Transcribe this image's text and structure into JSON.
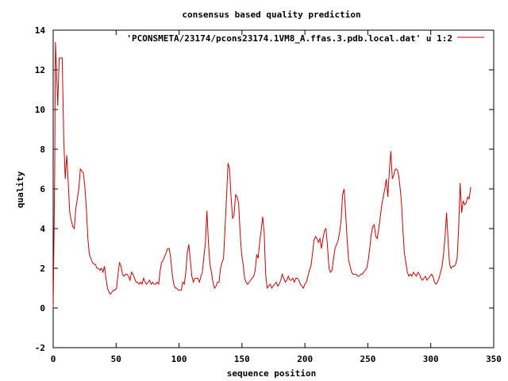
{
  "chart_data": {
    "type": "line",
    "title": "consensus based quality prediction",
    "xlabel": "sequence position",
    "ylabel": "quality",
    "xlim": [
      0,
      350
    ],
    "ylim": [
      -2,
      14
    ],
    "xticks": [
      0,
      50,
      100,
      150,
      200,
      250,
      300,
      350
    ],
    "yticks": [
      -2,
      0,
      2,
      4,
      6,
      8,
      10,
      12,
      14
    ],
    "grid": false,
    "legend_position": "top-right",
    "series": [
      {
        "name": "'PCONSMETA/23174/pcons23174.1VM8_A.ffas.3.pdb.local.dat' u 1:2",
        "color": "#cc0000",
        "points": [
          [
            0,
            0
          ],
          [
            1,
            6.6
          ],
          [
            1.5,
            13.4
          ],
          [
            2,
            12.4
          ],
          [
            3,
            10.2
          ],
          [
            4,
            12.6
          ],
          [
            5,
            12.6
          ],
          [
            6,
            12.6
          ],
          [
            7,
            8.5
          ],
          [
            8,
            6.5
          ],
          [
            9,
            7.7
          ],
          [
            10,
            6.3
          ],
          [
            11,
            4.8
          ],
          [
            12,
            4.4
          ],
          [
            13,
            4.1
          ],
          [
            14,
            4.0
          ],
          [
            15,
            5.0
          ],
          [
            16,
            5.5
          ],
          [
            17,
            6.0
          ],
          [
            18,
            7.0
          ],
          [
            19,
            6.9
          ],
          [
            20,
            6.8
          ],
          [
            21,
            6.1
          ],
          [
            22,
            5.0
          ],
          [
            23,
            3.5
          ],
          [
            24,
            2.7
          ],
          [
            25,
            2.5
          ],
          [
            26,
            2.3
          ],
          [
            27,
            2.2
          ],
          [
            28,
            2.2
          ],
          [
            29,
            2.0
          ],
          [
            30,
            2.0
          ],
          [
            31,
            1.9
          ],
          [
            32,
            2.0
          ],
          [
            33,
            1.8
          ],
          [
            34,
            2.1
          ],
          [
            35,
            1.5
          ],
          [
            36,
            1.0
          ],
          [
            37,
            0.8
          ],
          [
            38,
            0.7
          ],
          [
            39,
            0.8
          ],
          [
            40,
            0.9
          ],
          [
            41,
            0.9
          ],
          [
            42,
            1.0
          ],
          [
            43,
            1.7
          ],
          [
            44,
            2.3
          ],
          [
            45,
            2.1
          ],
          [
            46,
            1.7
          ],
          [
            47,
            1.6
          ],
          [
            48,
            1.7
          ],
          [
            49,
            1.7
          ],
          [
            50,
            1.6
          ],
          [
            51,
            1.4
          ],
          [
            52,
            1.8
          ],
          [
            53,
            1.7
          ],
          [
            54,
            1.5
          ],
          [
            55,
            1.3
          ],
          [
            56,
            1.3
          ],
          [
            57,
            1.2
          ],
          [
            58,
            1.3
          ],
          [
            59,
            1.2
          ],
          [
            60,
            1.5
          ],
          [
            61,
            1.3
          ],
          [
            62,
            1.2
          ],
          [
            63,
            1.3
          ],
          [
            64,
            1.4
          ],
          [
            65,
            1.2
          ],
          [
            66,
            1.3
          ],
          [
            67,
            1.2
          ],
          [
            68,
            1.2
          ],
          [
            69,
            1.3
          ],
          [
            70,
            1.2
          ],
          [
            71,
            1.9
          ],
          [
            72,
            2.3
          ],
          [
            73,
            2.4
          ],
          [
            74,
            2.6
          ],
          [
            75,
            2.8
          ],
          [
            76,
            3.0
          ],
          [
            77,
            3.0
          ],
          [
            78,
            2.5
          ],
          [
            79,
            1.7
          ],
          [
            80,
            1.2
          ],
          [
            81,
            1.0
          ],
          [
            82,
            1.0
          ],
          [
            83,
            0.9
          ],
          [
            84,
            0.9
          ],
          [
            85,
            0.9
          ],
          [
            86,
            1.3
          ],
          [
            87,
            1.2
          ],
          [
            88,
            1.8
          ],
          [
            89,
            2.8
          ],
          [
            90,
            3.2
          ],
          [
            91,
            2.4
          ],
          [
            92,
            1.6
          ],
          [
            93,
            1.3
          ],
          [
            94,
            1.5
          ],
          [
            95,
            1.5
          ],
          [
            96,
            1.5
          ],
          [
            97,
            1.3
          ],
          [
            98,
            1.6
          ],
          [
            99,
            1.8
          ],
          [
            100,
            2.6
          ],
          [
            101,
            3.3
          ],
          [
            102,
            4.9
          ],
          [
            103,
            3.3
          ],
          [
            104,
            2.2
          ],
          [
            105,
            1.8
          ],
          [
            106,
            1.3
          ],
          [
            107,
            1.0
          ],
          [
            108,
            1.1
          ],
          [
            109,
            1.3
          ],
          [
            110,
            1.3
          ],
          [
            111,
            2.0
          ],
          [
            112,
            2.3
          ],
          [
            113,
            2.5
          ],
          [
            114,
            4.0
          ],
          [
            115,
            5.6
          ],
          [
            116,
            7.3
          ],
          [
            117,
            7.0
          ],
          [
            118,
            5.6
          ],
          [
            119,
            4.5
          ],
          [
            120,
            4.7
          ],
          [
            121,
            5.7
          ],
          [
            122,
            5.6
          ],
          [
            123,
            5.3
          ],
          [
            124,
            3.8
          ],
          [
            125,
            2.7
          ],
          [
            126,
            2.2
          ],
          [
            127,
            1.5
          ],
          [
            128,
            1.3
          ],
          [
            129,
            1.2
          ],
          [
            130,
            1.3
          ],
          [
            131,
            1.4
          ],
          [
            132,
            1.5
          ],
          [
            133,
            1.6
          ],
          [
            134,
            1.9
          ],
          [
            135,
            2.7
          ],
          [
            136,
            2.5
          ],
          [
            137,
            3.3
          ],
          [
            138,
            3.9
          ],
          [
            139,
            4.6
          ],
          [
            140,
            3.8
          ],
          [
            141,
            1.7
          ],
          [
            142,
            1.0
          ],
          [
            143,
            1.1
          ],
          [
            144,
            1.2
          ],
          [
            145,
            1.0
          ],
          [
            146,
            1.1
          ],
          [
            147,
            1.2
          ],
          [
            148,
            1.3
          ],
          [
            149,
            1.1
          ],
          [
            150,
            1.2
          ],
          [
            151,
            1.4
          ],
          [
            152,
            1.7
          ],
          [
            153,
            1.5
          ],
          [
            154,
            1.3
          ],
          [
            155,
            1.4
          ],
          [
            156,
            1.6
          ],
          [
            157,
            1.4
          ],
          [
            158,
            1.4
          ],
          [
            159,
            1.5
          ],
          [
            160,
            1.3
          ],
          [
            161,
            1.5
          ],
          [
            162,
            1.5
          ],
          [
            163,
            1.4
          ],
          [
            164,
            1.2
          ],
          [
            165,
            1.1
          ],
          [
            166,
            1.0
          ],
          [
            167,
            1.2
          ],
          [
            168,
            1.3
          ],
          [
            169,
            1.6
          ],
          [
            170,
            1.9
          ],
          [
            171,
            2.1
          ],
          [
            172,
            2.7
          ],
          [
            173,
            3.4
          ],
          [
            174,
            3.6
          ],
          [
            175,
            3.5
          ],
          [
            176,
            3.3
          ],
          [
            177,
            3.5
          ],
          [
            178,
            3.0
          ],
          [
            179,
            3.5
          ],
          [
            180,
            3.9
          ],
          [
            181,
            4.0
          ],
          [
            182,
            3.1
          ],
          [
            183,
            2.0
          ],
          [
            184,
            1.8
          ],
          [
            185,
            1.9
          ],
          [
            186,
            2.5
          ],
          [
            187,
            3.0
          ],
          [
            188,
            3.2
          ],
          [
            189,
            3.4
          ],
          [
            190,
            3.8
          ],
          [
            191,
            4.4
          ],
          [
            192,
            5.7
          ],
          [
            193,
            6.0
          ],
          [
            194,
            4.8
          ],
          [
            195,
            3.5
          ],
          [
            196,
            2.4
          ],
          [
            197,
            2.1
          ],
          [
            198,
            1.8
          ],
          [
            199,
            1.7
          ],
          [
            200,
            1.7
          ],
          [
            201,
            1.7
          ],
          [
            202,
            1.6
          ],
          [
            203,
            1.6
          ],
          [
            204,
            1.7
          ],
          [
            205,
            1.7
          ],
          [
            206,
            1.8
          ],
          [
            207,
            1.9
          ],
          [
            208,
            2.0
          ],
          [
            209,
            2.4
          ],
          [
            210,
            3.0
          ],
          [
            211,
            3.7
          ],
          [
            212,
            4.1
          ],
          [
            213,
            4.2
          ],
          [
            214,
            3.6
          ],
          [
            215,
            3.5
          ],
          [
            216,
            4.0
          ],
          [
            217,
            4.6
          ],
          [
            218,
            5.2
          ],
          [
            219,
            5.6
          ],
          [
            220,
            6.0
          ],
          [
            221,
            6.5
          ],
          [
            222,
            5.6
          ],
          [
            223,
            6.9
          ],
          [
            224,
            7.9
          ],
          [
            225,
            6.5
          ],
          [
            226,
            6.7
          ],
          [
            227,
            7.0
          ],
          [
            228,
            7.0
          ],
          [
            229,
            6.8
          ],
          [
            230,
            6.2
          ],
          [
            231,
            5.4
          ],
          [
            232,
            4.0
          ],
          [
            233,
            2.8
          ],
          [
            234,
            2.3
          ],
          [
            235,
            1.8
          ],
          [
            236,
            1.6
          ],
          [
            237,
            1.7
          ],
          [
            238,
            1.6
          ],
          [
            239,
            1.8
          ],
          [
            240,
            1.7
          ],
          [
            241,
            1.6
          ],
          [
            242,
            1.8
          ],
          [
            243,
            1.7
          ],
          [
            244,
            1.5
          ],
          [
            245,
            1.4
          ],
          [
            246,
            1.5
          ],
          [
            247,
            1.6
          ],
          [
            248,
            1.4
          ],
          [
            249,
            1.5
          ],
          [
            250,
            1.6
          ],
          [
            251,
            1.7
          ],
          [
            252,
            1.6
          ],
          [
            253,
            1.3
          ],
          [
            254,
            1.2
          ],
          [
            255,
            1.3
          ],
          [
            256,
            1.5
          ],
          [
            257,
            1.8
          ],
          [
            258,
            2.1
          ],
          [
            259,
            2.7
          ],
          [
            260,
            3.6
          ],
          [
            261,
            4.8
          ],
          [
            262,
            3.4
          ],
          [
            263,
            2.2
          ],
          [
            264,
            2.0
          ],
          [
            265,
            2.1
          ],
          [
            266,
            2.1
          ],
          [
            267,
            2.2
          ],
          [
            268,
            2.5
          ],
          [
            269,
            4.0
          ],
          [
            270,
            6.3
          ],
          [
            271,
            4.8
          ],
          [
            272,
            5.4
          ],
          [
            273,
            5.2
          ],
          [
            274,
            5.3
          ],
          [
            275,
            5.6
          ],
          [
            276,
            5.5
          ],
          [
            277,
            6.1
          ]
        ],
        "x_scale": 1.1975
      }
    ]
  }
}
